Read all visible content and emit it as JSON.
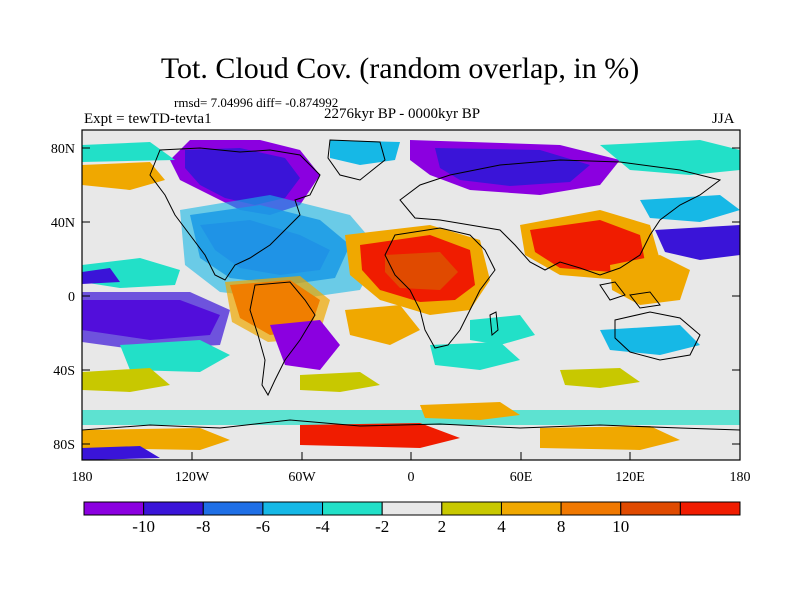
{
  "title": "Tot. Cloud Cov. (random overlap, in %)",
  "stats": "rmsd= 7.04996 diff= -0.874992",
  "experiment": "Expt = tewTD-tevta1",
  "period": "2276kyr BP - 0000kyr BP",
  "season": "JJA",
  "map": {
    "lat_ticks": [
      "80N",
      "40N",
      "0",
      "40S",
      "80S"
    ],
    "lon_ticks": [
      "180",
      "120W",
      "60W",
      "0",
      "60E",
      "120E",
      "180"
    ]
  },
  "colorbar": {
    "colors": [
      "#8b00e0",
      "#3a14d8",
      "#1f6fe6",
      "#16b8e6",
      "#22e0c8",
      "#e8e8e8",
      "#c8c800",
      "#f0a800",
      "#f07800",
      "#e04a00",
      "#f01c00"
    ],
    "labels": [
      "-10",
      "-8",
      "-6",
      "-4",
      "-2",
      "2",
      "4",
      "8",
      "10"
    ]
  }
}
